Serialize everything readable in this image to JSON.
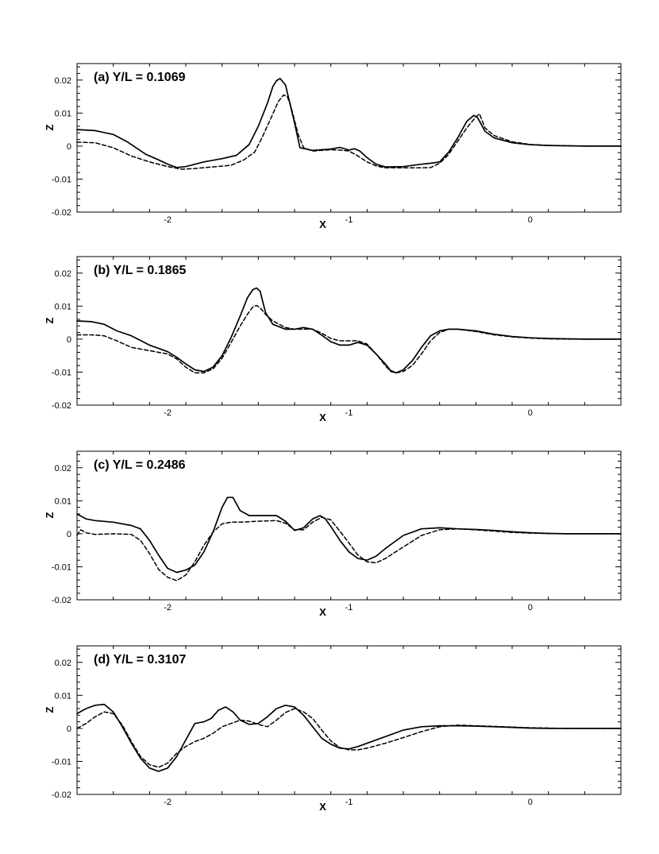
{
  "chart_data": [
    {
      "type": "line",
      "title": "(a) Y/L = 0.1069",
      "xlabel": "X",
      "ylabel": "Z",
      "xlim": [
        -2.5,
        0.5
      ],
      "ylim": [
        -0.02,
        0.025
      ],
      "xticks": [
        -2,
        -1,
        0
      ],
      "yticks": [
        -0.02,
        -0.01,
        0,
        0.01,
        0.02
      ],
      "ytick_labels": [
        "-0.02",
        "-0.01",
        "0",
        "0.01",
        "0.02"
      ],
      "grid": false,
      "series": [
        {
          "style": "solid",
          "x": [
            -2.5,
            -2.4,
            -2.3,
            -2.22,
            -2.12,
            -2.05,
            -2.0,
            -1.95,
            -1.9,
            -1.8,
            -1.7,
            -1.62,
            -1.55,
            -1.5,
            -1.45,
            -1.42,
            -1.4,
            -1.38,
            -1.35,
            -1.3,
            -1.27,
            -1.2,
            -1.1,
            -1.05,
            -1.0,
            -0.97,
            -0.94,
            -0.9,
            -0.85,
            -0.8,
            -0.7,
            -0.6,
            -0.55,
            -0.5,
            -0.45,
            -0.4,
            -0.35,
            -0.31,
            -0.29,
            -0.25,
            -0.2,
            -0.1,
            0.0,
            0.1,
            0.2,
            0.3,
            0.4,
            0.5
          ],
          "y": [
            0.005,
            0.0047,
            0.0035,
            0.0012,
            -0.0025,
            -0.0042,
            -0.0055,
            -0.0065,
            -0.0062,
            -0.0048,
            -0.0038,
            -0.0028,
            0.0005,
            0.006,
            0.013,
            0.018,
            0.0198,
            0.0205,
            0.0185,
            0.007,
            -0.0005,
            -0.0013,
            -0.0009,
            -0.0004,
            -0.0012,
            -0.0008,
            -0.0015,
            -0.0035,
            -0.0055,
            -0.0063,
            -0.0062,
            -0.0055,
            -0.0052,
            -0.0048,
            -0.0018,
            0.0025,
            0.0075,
            0.0093,
            0.0086,
            0.0045,
            0.0025,
            0.001,
            0.0004,
            0.0002,
            0.0001,
            0.0,
            0.0,
            0.0
          ]
        },
        {
          "style": "dashed",
          "x": [
            -2.5,
            -2.4,
            -2.3,
            -2.2,
            -2.1,
            -2.0,
            -1.92,
            -1.85,
            -1.75,
            -1.65,
            -1.58,
            -1.52,
            -1.48,
            -1.43,
            -1.39,
            -1.36,
            -1.34,
            -1.32,
            -1.28,
            -1.25,
            -1.2,
            -1.1,
            -1.05,
            -1.0,
            -0.95,
            -0.9,
            -0.85,
            -0.8,
            -0.7,
            -0.6,
            -0.55,
            -0.5,
            -0.45,
            -0.4,
            -0.35,
            -0.3,
            -0.28,
            -0.25,
            -0.2,
            -0.1,
            0.0,
            0.1,
            0.2,
            0.3,
            0.4,
            0.5
          ],
          "y": [
            0.0012,
            0.001,
            -0.0005,
            -0.003,
            -0.0048,
            -0.0062,
            -0.007,
            -0.0068,
            -0.0063,
            -0.0058,
            -0.0042,
            -0.0018,
            0.0025,
            0.0085,
            0.0135,
            0.0155,
            0.015,
            0.012,
            0.0035,
            -0.0005,
            -0.0015,
            -0.0011,
            -0.0012,
            -0.0015,
            -0.003,
            -0.0048,
            -0.006,
            -0.0066,
            -0.0066,
            -0.0066,
            -0.0065,
            -0.0052,
            -0.0025,
            0.0015,
            0.0055,
            0.0088,
            0.0098,
            0.0055,
            0.0032,
            0.0013,
            0.0005,
            0.0002,
            0.0001,
            0.0,
            0.0,
            0.0
          ]
        }
      ]
    },
    {
      "type": "line",
      "title": "(b) Y/L = 0.1865",
      "xlabel": "X",
      "ylabel": "Z",
      "xlim": [
        -2.5,
        0.5
      ],
      "ylim": [
        -0.02,
        0.025
      ],
      "xticks": [
        -2,
        -1,
        0
      ],
      "yticks": [
        -0.02,
        -0.01,
        0,
        0.01,
        0.02
      ],
      "ytick_labels": [
        "-0.02",
        "-0.01",
        "0",
        "0.01",
        "0.02"
      ],
      "grid": false,
      "series": [
        {
          "style": "solid",
          "x": [
            -2.5,
            -2.42,
            -2.35,
            -2.28,
            -2.2,
            -2.1,
            -2.0,
            -1.95,
            -1.9,
            -1.85,
            -1.8,
            -1.75,
            -1.7,
            -1.65,
            -1.6,
            -1.56,
            -1.53,
            -1.51,
            -1.49,
            -1.46,
            -1.42,
            -1.35,
            -1.3,
            -1.25,
            -1.2,
            -1.15,
            -1.1,
            -1.05,
            -1.0,
            -0.95,
            -0.9,
            -0.85,
            -0.8,
            -0.77,
            -0.74,
            -0.7,
            -0.65,
            -0.6,
            -0.55,
            -0.5,
            -0.45,
            -0.4,
            -0.3,
            -0.2,
            -0.1,
            0.0,
            0.1,
            0.2,
            0.3,
            0.4,
            0.5
          ],
          "y": [
            0.0055,
            0.0053,
            0.0045,
            0.0025,
            0.001,
            -0.0018,
            -0.0038,
            -0.0055,
            -0.0075,
            -0.0093,
            -0.0098,
            -0.0085,
            -0.005,
            0.0005,
            0.007,
            0.0125,
            0.015,
            0.0155,
            0.0145,
            0.008,
            0.0045,
            0.003,
            0.003,
            0.0035,
            0.003,
            0.0012,
            -0.0008,
            -0.0018,
            -0.0018,
            -0.001,
            -0.0018,
            -0.0045,
            -0.0075,
            -0.0095,
            -0.0102,
            -0.0093,
            -0.0065,
            -0.0025,
            0.001,
            0.0025,
            0.003,
            0.003,
            0.0025,
            0.0015,
            0.0008,
            0.0004,
            0.0002,
            0.0001,
            0.0,
            0.0,
            0.0
          ]
        },
        {
          "style": "dashed",
          "x": [
            -2.5,
            -2.42,
            -2.35,
            -2.28,
            -2.2,
            -2.1,
            -2.0,
            -1.95,
            -1.9,
            -1.85,
            -1.8,
            -1.75,
            -1.7,
            -1.65,
            -1.6,
            -1.56,
            -1.53,
            -1.51,
            -1.49,
            -1.46,
            -1.42,
            -1.35,
            -1.3,
            -1.25,
            -1.2,
            -1.15,
            -1.1,
            -1.05,
            -1.0,
            -0.95,
            -0.9,
            -0.85,
            -0.8,
            -0.77,
            -0.74,
            -0.7,
            -0.65,
            -0.6,
            -0.55,
            -0.5,
            -0.45,
            -0.4,
            -0.3,
            -0.2,
            -0.1,
            0.0,
            0.1,
            0.2,
            0.3,
            0.4,
            0.5
          ],
          "y": [
            0.0013,
            0.0013,
            0.001,
            -0.0005,
            -0.0025,
            -0.0035,
            -0.0045,
            -0.006,
            -0.0085,
            -0.0102,
            -0.0102,
            -0.009,
            -0.0058,
            -0.001,
            0.004,
            0.0075,
            0.0098,
            0.0102,
            0.0095,
            0.0075,
            0.0055,
            0.0035,
            0.003,
            0.003,
            0.003,
            0.0018,
            0.0002,
            -0.0005,
            -0.0005,
            -0.0005,
            -0.0015,
            -0.0045,
            -0.008,
            -0.0098,
            -0.0102,
            -0.0098,
            -0.008,
            -0.0045,
            -0.0005,
            0.002,
            0.003,
            0.003,
            0.0023,
            0.0013,
            0.0007,
            0.0003,
            0.0001,
            0.0,
            0.0,
            0.0,
            0.0
          ]
        }
      ]
    },
    {
      "type": "line",
      "title": "(c) Y/L = 0.2486",
      "xlabel": "X",
      "ylabel": "Z",
      "xlim": [
        -2.5,
        0.5
      ],
      "ylim": [
        -0.02,
        0.025
      ],
      "xticks": [
        -2,
        -1,
        0
      ],
      "yticks": [
        -0.02,
        -0.01,
        0,
        0.01,
        0.02
      ],
      "ytick_labels": [
        "-0.02",
        "-0.01",
        "0",
        "0.01",
        "0.02"
      ],
      "grid": false,
      "series": [
        {
          "style": "solid",
          "x": [
            -2.5,
            -2.45,
            -2.4,
            -2.3,
            -2.2,
            -2.15,
            -2.1,
            -2.05,
            -2.0,
            -1.95,
            -1.9,
            -1.85,
            -1.8,
            -1.75,
            -1.7,
            -1.67,
            -1.64,
            -1.6,
            -1.55,
            -1.5,
            -1.45,
            -1.4,
            -1.35,
            -1.3,
            -1.25,
            -1.2,
            -1.16,
            -1.13,
            -1.1,
            -1.05,
            -1.0,
            -0.95,
            -0.9,
            -0.85,
            -0.8,
            -0.7,
            -0.6,
            -0.5,
            -0.4,
            -0.3,
            -0.2,
            -0.1,
            0.0,
            0.1,
            0.2,
            0.3,
            0.4,
            0.5
          ],
          "y": [
            0.006,
            0.0045,
            0.004,
            0.0035,
            0.0025,
            0.0015,
            -0.002,
            -0.0065,
            -0.0105,
            -0.0117,
            -0.011,
            -0.0095,
            -0.0055,
            0.0005,
            0.008,
            0.011,
            0.011,
            0.007,
            0.0055,
            0.0055,
            0.0055,
            0.0055,
            0.0038,
            0.001,
            0.0018,
            0.0045,
            0.0055,
            0.0045,
            0.0022,
            -0.002,
            -0.0055,
            -0.0075,
            -0.008,
            -0.0068,
            -0.0045,
            -0.0005,
            0.0015,
            0.0018,
            0.0015,
            0.0013,
            0.001,
            0.0006,
            0.0003,
            0.0001,
            0.0,
            0.0,
            0.0,
            0.0
          ]
        },
        {
          "style": "dashed",
          "x": [
            -2.5,
            -2.48,
            -2.45,
            -2.4,
            -2.3,
            -2.2,
            -2.15,
            -2.1,
            -2.05,
            -2.0,
            -1.95,
            -1.9,
            -1.85,
            -1.8,
            -1.75,
            -1.7,
            -1.65,
            -1.6,
            -1.5,
            -1.4,
            -1.35,
            -1.3,
            -1.25,
            -1.2,
            -1.15,
            -1.1,
            -1.05,
            -1.0,
            -0.95,
            -0.9,
            -0.85,
            -0.8,
            -0.7,
            -0.6,
            -0.5,
            -0.4,
            -0.3,
            -0.2,
            -0.1,
            0.0,
            0.1,
            0.2,
            0.3,
            0.4,
            0.5
          ],
          "y": [
            -0.0005,
            0.0012,
            0.0003,
            -0.0002,
            0.0,
            -0.0002,
            -0.002,
            -0.006,
            -0.0108,
            -0.0132,
            -0.0142,
            -0.0125,
            -0.0085,
            -0.0035,
            0.0005,
            0.003,
            0.0035,
            0.0035,
            0.0038,
            0.004,
            0.0032,
            0.0012,
            0.0012,
            0.0035,
            0.005,
            0.0042,
            0.0008,
            -0.0028,
            -0.0065,
            -0.0085,
            -0.0088,
            -0.0075,
            -0.004,
            -0.0005,
            0.0012,
            0.0015,
            0.0012,
            0.0008,
            0.0004,
            0.0002,
            0.0001,
            0.0,
            0.0,
            0.0,
            0.0
          ]
        }
      ]
    },
    {
      "type": "line",
      "title": "(d) Y/L = 0.3107",
      "xlabel": "X",
      "ylabel": "Z",
      "xlim": [
        -2.5,
        0.5
      ],
      "ylim": [
        -0.02,
        0.025
      ],
      "xticks": [
        -2,
        -1,
        0
      ],
      "yticks": [
        -0.02,
        -0.01,
        0,
        0.01,
        0.02
      ],
      "ytick_labels": [
        "-0.02",
        "-0.01",
        "0",
        "0.01",
        "0.02"
      ],
      "grid": false,
      "series": [
        {
          "style": "solid",
          "x": [
            -2.5,
            -2.45,
            -2.4,
            -2.35,
            -2.3,
            -2.25,
            -2.2,
            -2.15,
            -2.1,
            -2.05,
            -2.0,
            -1.95,
            -1.9,
            -1.85,
            -1.8,
            -1.76,
            -1.72,
            -1.68,
            -1.64,
            -1.6,
            -1.55,
            -1.5,
            -1.45,
            -1.4,
            -1.35,
            -1.3,
            -1.25,
            -1.2,
            -1.15,
            -1.1,
            -1.05,
            -1.0,
            -0.95,
            -0.9,
            -0.8,
            -0.7,
            -0.6,
            -0.5,
            -0.4,
            -0.3,
            -0.2,
            -0.1,
            0.0,
            0.1,
            0.2,
            0.3,
            0.4,
            0.5
          ],
          "y": [
            0.0045,
            0.006,
            0.007,
            0.0073,
            0.005,
            0.0005,
            -0.0045,
            -0.009,
            -0.012,
            -0.013,
            -0.012,
            -0.0085,
            -0.0035,
            0.0015,
            0.002,
            0.003,
            0.0055,
            0.0065,
            0.005,
            0.0025,
            0.0012,
            0.0015,
            0.0035,
            0.006,
            0.007,
            0.0065,
            0.004,
            0.0005,
            -0.003,
            -0.0048,
            -0.006,
            -0.0062,
            -0.0055,
            -0.0045,
            -0.0025,
            -0.0005,
            0.0005,
            0.0008,
            0.0008,
            0.0007,
            0.0005,
            0.0003,
            0.0001,
            0.0,
            0.0,
            0.0,
            0.0,
            0.0
          ]
        },
        {
          "style": "dashed",
          "x": [
            -2.5,
            -2.45,
            -2.4,
            -2.35,
            -2.3,
            -2.25,
            -2.2,
            -2.15,
            -2.1,
            -2.05,
            -2.0,
            -1.95,
            -1.9,
            -1.85,
            -1.8,
            -1.75,
            -1.7,
            -1.65,
            -1.6,
            -1.55,
            -1.5,
            -1.45,
            -1.4,
            -1.35,
            -1.3,
            -1.25,
            -1.2,
            -1.15,
            -1.1,
            -1.05,
            -1.0,
            -0.95,
            -0.9,
            -0.8,
            -0.7,
            -0.6,
            -0.5,
            -0.4,
            -0.3,
            -0.2,
            -0.1,
            0.0,
            0.1,
            0.2,
            0.3,
            0.4,
            0.5
          ],
          "y": [
            0.0,
            0.0015,
            0.0035,
            0.005,
            0.0045,
            0.001,
            -0.004,
            -0.0085,
            -0.011,
            -0.0118,
            -0.0105,
            -0.0075,
            -0.0055,
            -0.004,
            -0.003,
            -0.0015,
            0.0005,
            0.0015,
            0.0025,
            0.0022,
            0.0012,
            0.0005,
            0.0025,
            0.0048,
            0.006,
            0.005,
            0.003,
            -0.0005,
            -0.0038,
            -0.0058,
            -0.0065,
            -0.0065,
            -0.006,
            -0.0045,
            -0.0028,
            -0.001,
            0.0005,
            0.001,
            0.0008,
            0.0006,
            0.0004,
            0.0002,
            0.0001,
            0.0,
            0.0,
            0.0,
            0.0
          ]
        }
      ]
    }
  ]
}
